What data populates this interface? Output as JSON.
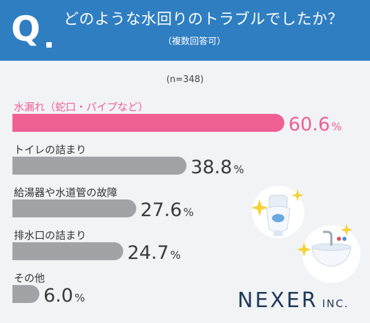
{
  "header": {
    "q_mark": "Q",
    "question": "どのような水回りのトラブルでしたか？",
    "sub": "（複数回答可）"
  },
  "sample_label": "(n=348)",
  "colors": {
    "header": "#2f7ec2",
    "highlight": "#ef5f94",
    "bar": "#a2a3a7",
    "value_text": "#3a3a3a"
  },
  "chart_data": {
    "type": "bar",
    "orientation": "horizontal",
    "categories": [
      "水漏れ（蛇口・パイプなど）",
      "トイレの詰まり",
      "給湯器や水道管の故障",
      "排水口の詰まり",
      "その他"
    ],
    "values": [
      60.6,
      38.8,
      27.6,
      24.7,
      6.0
    ],
    "unit": "%",
    "highlight_index": 0,
    "title": "どのような水回りのトラブルでしたか？",
    "xlim": [
      0,
      100
    ]
  },
  "logo": {
    "name": "NEXER",
    "suffix": "INC."
  },
  "icons": [
    "toilet-illustration",
    "sink-illustration",
    "sparkle-icon"
  ]
}
